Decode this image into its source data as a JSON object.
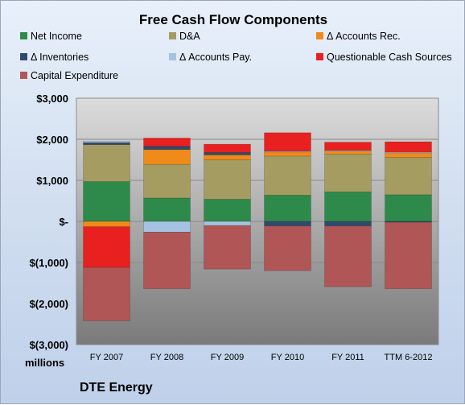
{
  "chart_data": {
    "type": "bar",
    "stacked": true,
    "title": "Free Cash Flow Components",
    "categories": [
      "FY 2007",
      "FY 2008",
      "FY 2009",
      "FY 2010",
      "FY 2011",
      "TTM 6-2012"
    ],
    "series": [
      {
        "name": "Net Income",
        "color": "#2e8a4b",
        "values": [
          970,
          570,
          540,
          640,
          720,
          650
        ]
      },
      {
        "name": "D&A",
        "color": "#a59c61",
        "values": [
          900,
          820,
          960,
          950,
          920,
          910
        ]
      },
      {
        "name": "Δ Accounts Rec.",
        "color": "#f08a1a",
        "values": [
          -130,
          360,
          120,
          100,
          70,
          110
        ]
      },
      {
        "name": "Δ Inventories",
        "color": "#2f4a6e",
        "values": [
          50,
          80,
          60,
          -110,
          -110,
          -20
        ]
      },
      {
        "name": "Δ Accounts Pay.",
        "color": "#a6c2e2",
        "values": [
          30,
          -260,
          -100,
          20,
          20,
          20
        ]
      },
      {
        "name": "Questionable Cash Sources",
        "color": "#e82020",
        "values": [
          -990,
          200,
          200,
          450,
          200,
          250
        ]
      },
      {
        "name": "Capital Expenditure",
        "color": "#b05656",
        "values": [
          -1300,
          -1380,
          -1060,
          -1090,
          -1480,
          -1620
        ]
      }
    ],
    "y_tick_labels": [
      "$3,000",
      "$2,000",
      "$1,000",
      "$-",
      "$(1,000)",
      "$(2,000)",
      "$(3,000)"
    ],
    "ylim": [
      -3000,
      3000
    ],
    "ylabel": "millions",
    "grid": true,
    "legend_position": "top"
  },
  "footer": {
    "company": "DTE Energy"
  }
}
